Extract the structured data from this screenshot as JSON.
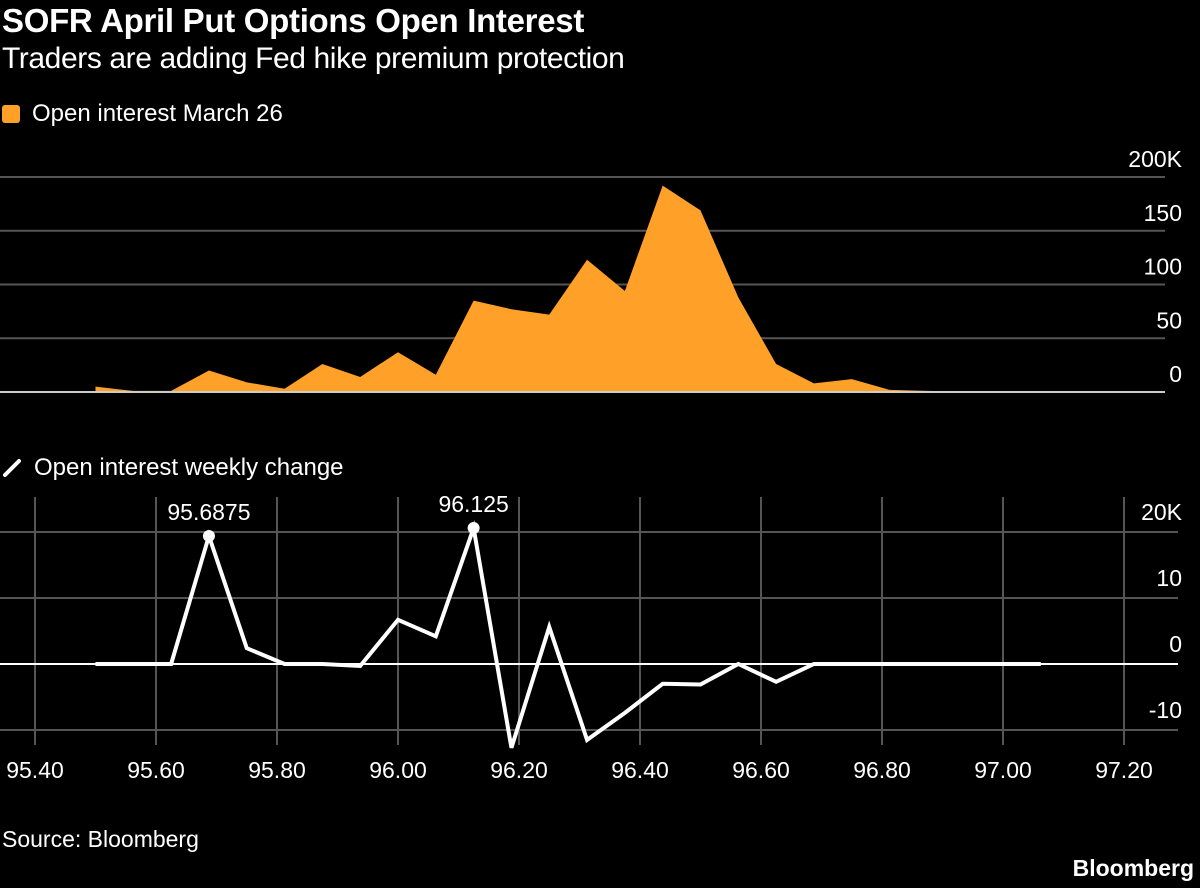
{
  "title": "SOFR April Put Options Open Interest",
  "subtitle": "Traders are adding Fed hike premium protection",
  "source": "Source: Bloomberg",
  "logo": "Bloomberg",
  "colors": {
    "area": "#FFA028",
    "line": "#FFFFFF",
    "grid": "#555555",
    "background": "#000000"
  },
  "chart_data": [
    {
      "type": "area",
      "legend": "Open interest March 26",
      "legend_icon": "square-swatch",
      "x": [
        95.5,
        95.5625,
        95.625,
        95.6875,
        95.75,
        95.8125,
        95.875,
        95.9375,
        96.0,
        96.0625,
        96.125,
        96.1875,
        96.25,
        96.3125,
        96.375,
        96.4375,
        96.5,
        96.5625,
        96.625,
        96.6875,
        96.75,
        96.8125,
        96.875,
        96.9375,
        97.0,
        97.0625
      ],
      "values": [
        5,
        1,
        1,
        20,
        9,
        3,
        26,
        14,
        37,
        16,
        85,
        77,
        72,
        123,
        94,
        192,
        169,
        88,
        26,
        8,
        12,
        2,
        1,
        0.5,
        0,
        0
      ],
      "ylim": [
        0,
        200
      ],
      "yticks": [
        "200K",
        "150",
        "100",
        "50",
        "0"
      ],
      "ytick_values": [
        200,
        150,
        100,
        50,
        0
      ],
      "grid": "horizontal"
    },
    {
      "type": "line",
      "legend": "Open interest weekly change",
      "legend_icon": "line-swatch",
      "x": [
        95.5,
        95.5625,
        95.625,
        95.6875,
        95.75,
        95.8125,
        95.875,
        95.9375,
        96.0,
        96.0625,
        96.125,
        96.1875,
        96.25,
        96.3125,
        96.375,
        96.4375,
        96.5,
        96.5625,
        96.625,
        96.6875,
        96.75,
        96.8125,
        96.875,
        96.9375,
        97.0,
        97.0625
      ],
      "values": [
        0,
        0,
        0,
        19.4,
        2.4,
        0,
        0,
        -0.3,
        6.7,
        4.2,
        20.6,
        -12.7,
        5.6,
        -11.5,
        -7.4,
        -3,
        -3.1,
        0,
        -2.7,
        0,
        0,
        0,
        0,
        0,
        0,
        0
      ],
      "ylim": [
        -12.7,
        20.6
      ],
      "yticks": [
        "20K",
        "10",
        "0",
        "-10"
      ],
      "ytick_values": [
        20,
        10,
        0,
        -10
      ],
      "xticks": [
        "95.40",
        "95.60",
        "95.80",
        "96.00",
        "96.20",
        "96.40",
        "96.60",
        "96.80",
        "97.00",
        "97.20"
      ],
      "xtick_values": [
        95.4,
        95.6,
        95.8,
        96.0,
        96.2,
        96.4,
        96.6,
        96.8,
        97.0,
        97.2
      ],
      "annotations": [
        {
          "x": 95.6875,
          "y": 19.4,
          "label": "95.6875"
        },
        {
          "x": 96.125,
          "y": 20.6,
          "label": "96.125"
        }
      ],
      "grid": "both"
    }
  ]
}
